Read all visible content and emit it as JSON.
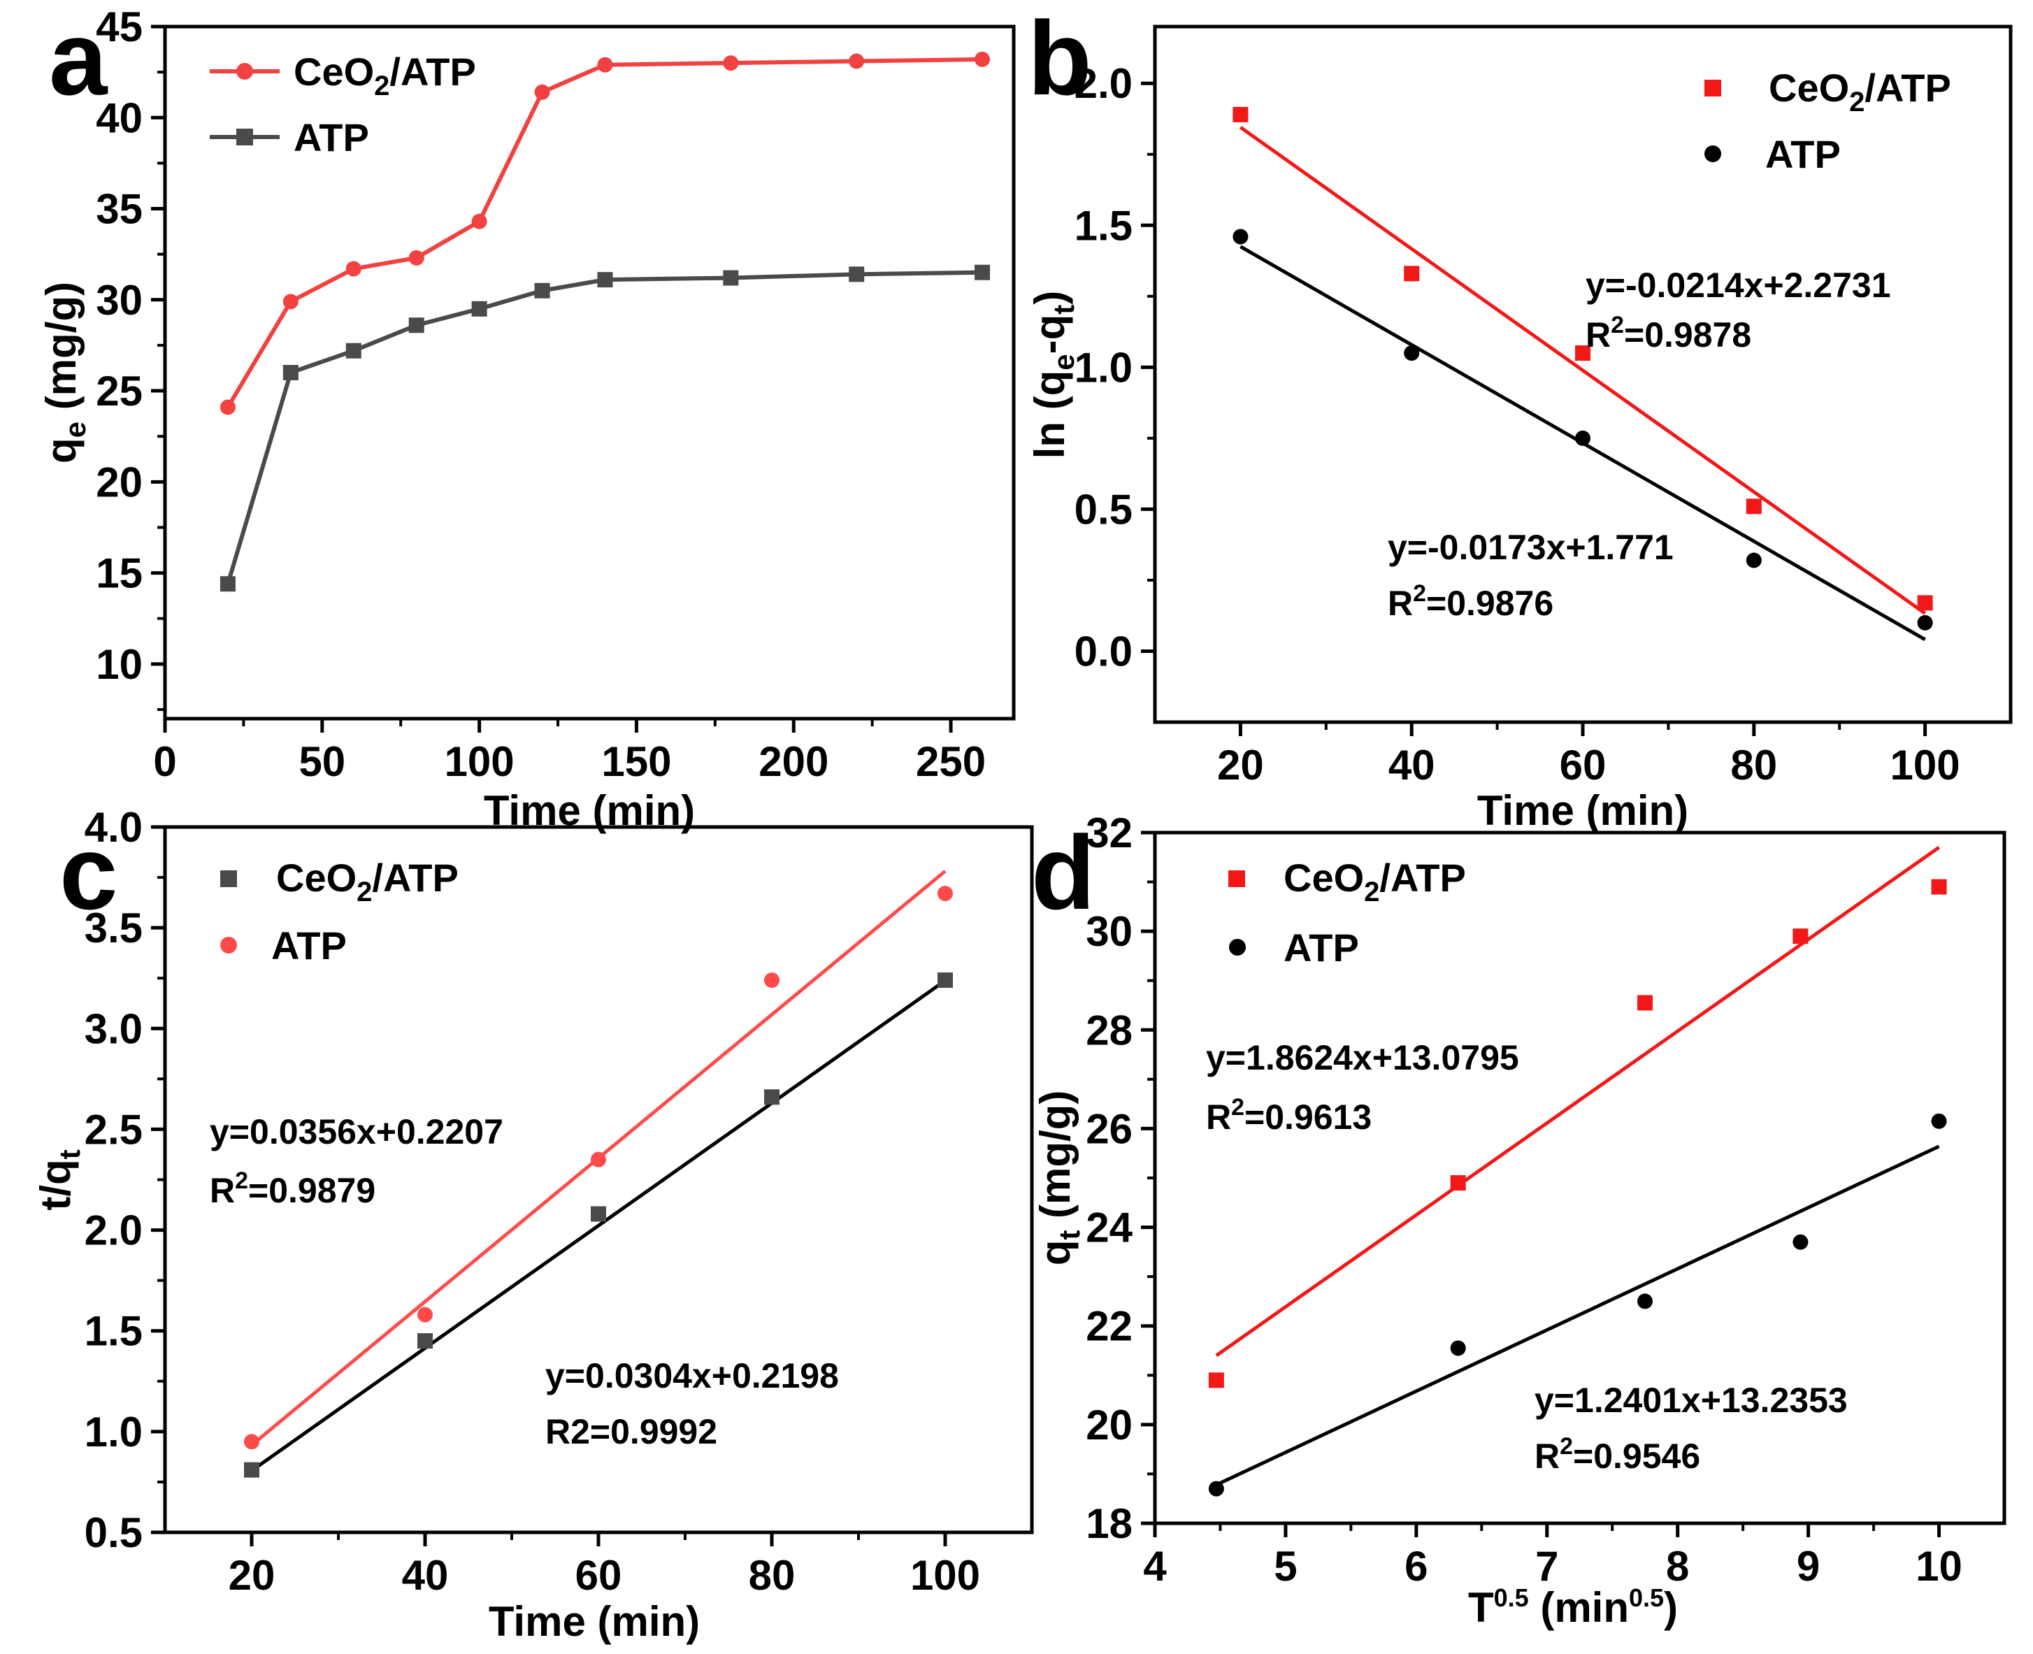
{
  "colors": {
    "red": "#f21818",
    "black": "#000000",
    "gray": "#4a4a4a",
    "lightred": "#ff4a4a"
  },
  "chart_data": [
    {
      "panel": "a",
      "type": "line",
      "xlabel": "Time (min)",
      "ylabel": "qe (mg/g)",
      "xlim": [
        0,
        270
      ],
      "ylim": [
        7,
        45
      ],
      "xticks": [
        0,
        50,
        100,
        150,
        200,
        250
      ],
      "yticks": [
        10,
        15,
        20,
        25,
        30,
        35,
        40,
        45
      ],
      "legend_position": "top-left",
      "series": [
        {
          "name": "CeO2/ATP",
          "color": "#f24141",
          "marker": "circle",
          "x": [
            20,
            40,
            60,
            80,
            100,
            120,
            140,
            180,
            220,
            260
          ],
          "y": [
            24.1,
            29.9,
            31.7,
            32.3,
            34.3,
            41.4,
            42.9,
            43.0,
            43.1,
            43.2
          ]
        },
        {
          "name": "ATP",
          "color": "#4a4a4a",
          "marker": "square",
          "x": [
            20,
            40,
            60,
            80,
            100,
            120,
            140,
            180,
            220,
            260
          ],
          "y": [
            14.4,
            26.0,
            27.2,
            28.6,
            29.5,
            30.5,
            31.1,
            31.2,
            31.4,
            31.5
          ]
        }
      ]
    },
    {
      "panel": "b",
      "type": "scatter",
      "xlabel": "Time (min)",
      "ylabel": "ln (qe-qt)",
      "xlim": [
        10,
        110
      ],
      "ylim": [
        -0.25,
        2.2
      ],
      "xticks": [
        20,
        40,
        60,
        80,
        100
      ],
      "yticks": [
        0.0,
        0.5,
        1.0,
        1.5,
        2.0
      ],
      "legend_position": "top-right",
      "series": [
        {
          "name": "CeO2/ATP",
          "color": "#f21818",
          "marker": "square",
          "x": [
            20,
            40,
            60,
            80,
            100
          ],
          "y": [
            1.89,
            1.33,
            1.05,
            0.51,
            0.17
          ],
          "fit": {
            "x": [
              20,
              100
            ],
            "y": [
              1.845,
              0.133
            ]
          },
          "equation": "y=-0.0214x+2.2731",
          "r2_value": "=0.9878"
        },
        {
          "name": "ATP",
          "color": "#000000",
          "marker": "circle",
          "x": [
            20,
            40,
            60,
            80,
            100
          ],
          "y": [
            1.46,
            1.05,
            0.75,
            0.32,
            0.1
          ],
          "fit": {
            "x": [
              20,
              100
            ],
            "y": [
              1.425,
              0.041
            ]
          },
          "equation": "y=-0.0173x+1.771",
          "r2_value": "=0.9876"
        }
      ]
    },
    {
      "panel": "c",
      "type": "scatter",
      "xlabel": "Time (min)",
      "ylabel": "t/qt",
      "xlim": [
        10,
        110
      ],
      "ylim": [
        0.5,
        4.0
      ],
      "xticks": [
        20,
        40,
        60,
        80,
        100
      ],
      "yticks": [
        0.5,
        1.0,
        1.5,
        2.0,
        2.5,
        3.0,
        3.5,
        4.0
      ],
      "legend_position": "top-left",
      "series": [
        {
          "name": "CeO2/ATP",
          "color": "#4a4a4a",
          "marker": "square",
          "x": [
            20,
            40,
            60,
            80,
            100
          ],
          "y": [
            0.81,
            1.45,
            2.08,
            2.66,
            3.24
          ],
          "fit": {
            "x": [
              20,
              100
            ],
            "y": [
              0.806,
              3.238
            ]
          },
          "equation": "y=0.0304x+0.2198",
          "r2_text": "R2=0.9992"
        },
        {
          "name": "ATP",
          "color": "#ff4a4a",
          "marker": "circle",
          "x": [
            20,
            40,
            60,
            80,
            100
          ],
          "y": [
            0.95,
            1.58,
            2.35,
            3.24,
            3.67
          ],
          "fit": {
            "x": [
              20,
              100
            ],
            "y": [
              0.933,
              3.781
            ]
          },
          "equation": "y=0.0356x+0.2207",
          "r2_value": "=0.9879"
        }
      ]
    },
    {
      "panel": "d",
      "type": "scatter",
      "xlabel": "T0.5 (min0.5)",
      "ylabel": "qt (mg/g)",
      "xlim": [
        4,
        10.5
      ],
      "ylim": [
        18,
        32
      ],
      "xticks": [
        4,
        5,
        6,
        7,
        8,
        9,
        10
      ],
      "yticks": [
        18,
        20,
        22,
        24,
        26,
        28,
        30,
        32
      ],
      "legend_position": "top-left",
      "series": [
        {
          "name": "CeO2/ATP",
          "color": "#f21818",
          "marker": "square",
          "x": [
            4.47,
            6.32,
            7.75,
            8.94,
            10.0
          ],
          "y": [
            20.9,
            24.9,
            28.55,
            29.9,
            30.9
          ],
          "fit": {
            "x": [
              4.47,
              10.0
            ],
            "y": [
              21.4,
              31.7
            ]
          },
          "equation": "y=1.8624x+13.0795",
          "r2_value": "=0.9613"
        },
        {
          "name": "ATP",
          "color": "#000000",
          "marker": "circle",
          "x": [
            4.47,
            6.32,
            7.75,
            8.94,
            10.0
          ],
          "y": [
            18.7,
            21.55,
            22.5,
            23.7,
            26.15
          ],
          "fit": {
            "x": [
              4.47,
              10.0
            ],
            "y": [
              18.78,
              25.64
            ]
          },
          "equation": "y=1.2401x+13.2353",
          "r2_value": "=0.9546"
        }
      ]
    }
  ]
}
